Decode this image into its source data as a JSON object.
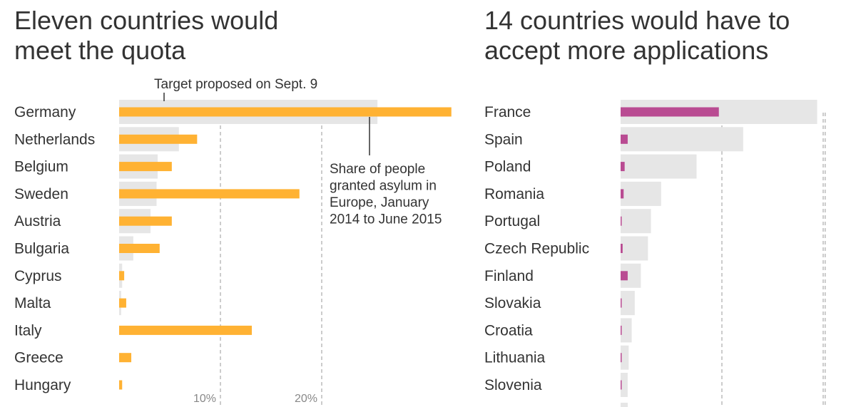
{
  "chart_data": [
    {
      "type": "bar",
      "title": "Eleven countries would meet the quota",
      "unit": "%",
      "xlim": [
        0,
        32.5
      ],
      "series": [
        {
          "name": "Target proposed on Sept. 9",
          "color": "#e6e6e6",
          "values": [
            25.5,
            5.9,
            3.8,
            3.7,
            3.1,
            1.4,
            0.3,
            0.2,
            0,
            0,
            0
          ]
        },
        {
          "name": "Share of people granted asylum in Europe, January 2014 to June 2015",
          "color": "#ffb233",
          "values": [
            32.8,
            7.7,
            5.2,
            17.8,
            5.2,
            4.0,
            0.5,
            0.7,
            13.1,
            1.2,
            0.3
          ]
        }
      ],
      "categories": [
        "Germany",
        "Netherlands",
        "Belgium",
        "Sweden",
        "Austria",
        "Bulgaria",
        "Cyprus",
        "Malta",
        "Italy",
        "Greece",
        "Hungary"
      ],
      "ticks": [
        "10%",
        "20%"
      ],
      "tick_values": [
        10,
        20
      ],
      "annotations": {
        "target": "Target proposed on Sept. 9",
        "share_lines": [
          "Share of people",
          "granted asylum in",
          "Europe, January",
          "2014 to June 2015"
        ]
      }
    },
    {
      "type": "bar",
      "title": "14 countries would have to accept more applications",
      "unit": "%",
      "xlim": [
        0,
        32.5
      ],
      "series": [
        {
          "name": "Target proposed on Sept. 9",
          "color": "#e6e6e6",
          "values": [
            19.4,
            12.1,
            7.5,
            4.0,
            3.0,
            2.7,
            2.0,
            1.4,
            1.1,
            0.8,
            0.7
          ]
        },
        {
          "name": "Share of people granted asylum in Europe, January 2014 to June 2015",
          "color": "#b94b92",
          "values": [
            9.7,
            0.7,
            0.4,
            0.3,
            0.1,
            0.2,
            0.7,
            0.1,
            0.05,
            0.05,
            0.05
          ]
        }
      ],
      "categories": [
        "France",
        "Spain",
        "Poland",
        "Romania",
        "Portugal",
        "Czech Republic",
        "Finland",
        "Slovakia",
        "Croatia",
        "Lithuania",
        "Slovenia"
      ],
      "tick_values": [
        10,
        20
      ]
    }
  ]
}
